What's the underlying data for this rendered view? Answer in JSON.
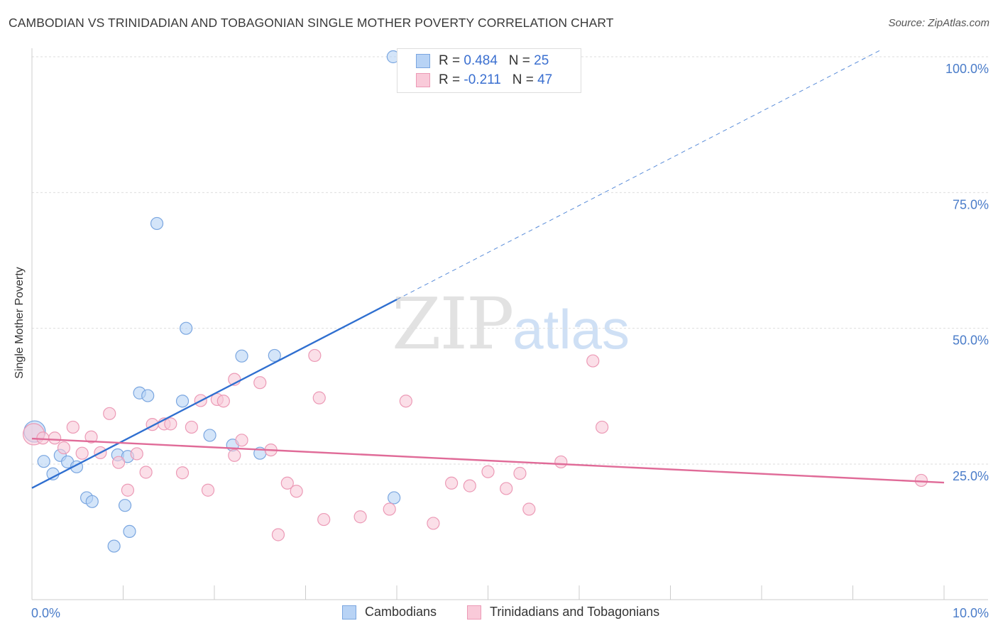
{
  "title": "CAMBODIAN VS TRINIDADIAN AND TOBAGONIAN SINGLE MOTHER POVERTY CORRELATION CHART",
  "source": "Source: ZipAtlas.com",
  "watermark": {
    "zip": "ZIP",
    "atlas": "atlas"
  },
  "legend": {
    "r_label": "R =",
    "n_label": "N =",
    "cambodians": {
      "r": "0.484",
      "n": "25"
    },
    "trinidadians": {
      "r": "-0.211",
      "n": "47"
    }
  },
  "bottom_legend": {
    "cambodians": "Cambodians",
    "trinidadians": "Trinidadians and Tobagonians"
  },
  "colors": {
    "blue_fill": "#b8d3f5",
    "blue_stroke": "#7aa6e0",
    "blue_line": "#2f6fd0",
    "pink_fill": "#f9cad9",
    "pink_stroke": "#ec9ab6",
    "pink_line": "#e06b98",
    "grid": "#dddddd",
    "tick_label": "#4a7cc9"
  },
  "chart_data": {
    "type": "scatter",
    "title": "CAMBODIAN VS TRINIDADIAN AND TOBAGONIAN SINGLE MOTHER POVERTY CORRELATION CHART",
    "xlabel": "",
    "ylabel": "Single Mother Poverty",
    "xlim": [
      0,
      10
    ],
    "ylim": [
      5,
      103
    ],
    "x_tick_labels": [
      {
        "x": 0,
        "label": "0.0%"
      },
      {
        "x": 10,
        "label": "10.0%"
      }
    ],
    "y_tick_labels": [
      {
        "y": 25,
        "label": "25.0%"
      },
      {
        "y": 50,
        "label": "50.0%"
      },
      {
        "y": 75,
        "label": "75.0%"
      },
      {
        "y": 100,
        "label": "100.0%"
      }
    ],
    "grid": true,
    "legend_position": "top-center",
    "series": [
      {
        "name": "Cambodians",
        "color": "#b8d3f5",
        "points": [
          [
            0.03,
            31.0
          ],
          [
            0.13,
            25.5
          ],
          [
            0.23,
            23.2
          ],
          [
            0.31,
            26.6
          ],
          [
            0.39,
            25.4
          ],
          [
            0.49,
            24.5
          ],
          [
            0.6,
            18.8
          ],
          [
            0.66,
            18.1
          ],
          [
            0.94,
            26.7
          ],
          [
            1.05,
            26.4
          ],
          [
            0.9,
            9.9
          ],
          [
            1.02,
            17.4
          ],
          [
            1.07,
            12.6
          ],
          [
            1.18,
            38.1
          ],
          [
            1.27,
            37.6
          ],
          [
            1.37,
            69.3
          ],
          [
            1.65,
            36.6
          ],
          [
            1.69,
            50.0
          ],
          [
            1.95,
            30.3
          ],
          [
            2.2,
            28.5
          ],
          [
            2.3,
            44.9
          ],
          [
            2.5,
            27.0
          ],
          [
            2.66,
            45.0
          ],
          [
            3.96,
            100.0
          ],
          [
            3.97,
            18.8
          ]
        ],
        "trend": {
          "from": [
            0.0,
            20.6
          ],
          "to": [
            4.0,
            55.3
          ],
          "dashed_to": [
            9.3,
            101.2
          ]
        }
      },
      {
        "name": "Trinidadians and Tobagonians",
        "color": "#f9cad9",
        "points": [
          [
            0.02,
            30.5
          ],
          [
            0.12,
            29.8
          ],
          [
            0.25,
            29.8
          ],
          [
            0.35,
            28.0
          ],
          [
            0.45,
            31.8
          ],
          [
            0.55,
            27.0
          ],
          [
            0.65,
            30.0
          ],
          [
            0.75,
            27.1
          ],
          [
            0.85,
            34.3
          ],
          [
            0.95,
            25.3
          ],
          [
            1.05,
            20.2
          ],
          [
            1.15,
            26.9
          ],
          [
            1.25,
            23.5
          ],
          [
            1.32,
            32.3
          ],
          [
            1.45,
            32.4
          ],
          [
            1.52,
            32.4
          ],
          [
            1.65,
            23.4
          ],
          [
            1.75,
            31.8
          ],
          [
            1.85,
            36.7
          ],
          [
            1.93,
            20.2
          ],
          [
            2.03,
            36.9
          ],
          [
            2.1,
            36.6
          ],
          [
            2.22,
            40.6
          ],
          [
            2.3,
            29.4
          ],
          [
            2.22,
            26.6
          ],
          [
            2.5,
            40.0
          ],
          [
            2.62,
            27.6
          ],
          [
            2.7,
            12.0
          ],
          [
            2.8,
            21.5
          ],
          [
            2.9,
            20.0
          ],
          [
            3.1,
            45.0
          ],
          [
            3.15,
            37.2
          ],
          [
            3.2,
            14.8
          ],
          [
            3.6,
            15.3
          ],
          [
            3.92,
            16.7
          ],
          [
            4.1,
            36.6
          ],
          [
            4.4,
            14.1
          ],
          [
            4.6,
            21.5
          ],
          [
            4.8,
            21.0
          ],
          [
            5.0,
            23.6
          ],
          [
            5.2,
            20.5
          ],
          [
            5.35,
            23.3
          ],
          [
            5.45,
            16.7
          ],
          [
            5.8,
            25.4
          ],
          [
            6.15,
            44.0
          ],
          [
            6.25,
            31.8
          ],
          [
            9.75,
            22.0
          ]
        ],
        "trend": {
          "from": [
            0.0,
            29.7
          ],
          "to": [
            10.0,
            21.6
          ]
        }
      }
    ]
  }
}
